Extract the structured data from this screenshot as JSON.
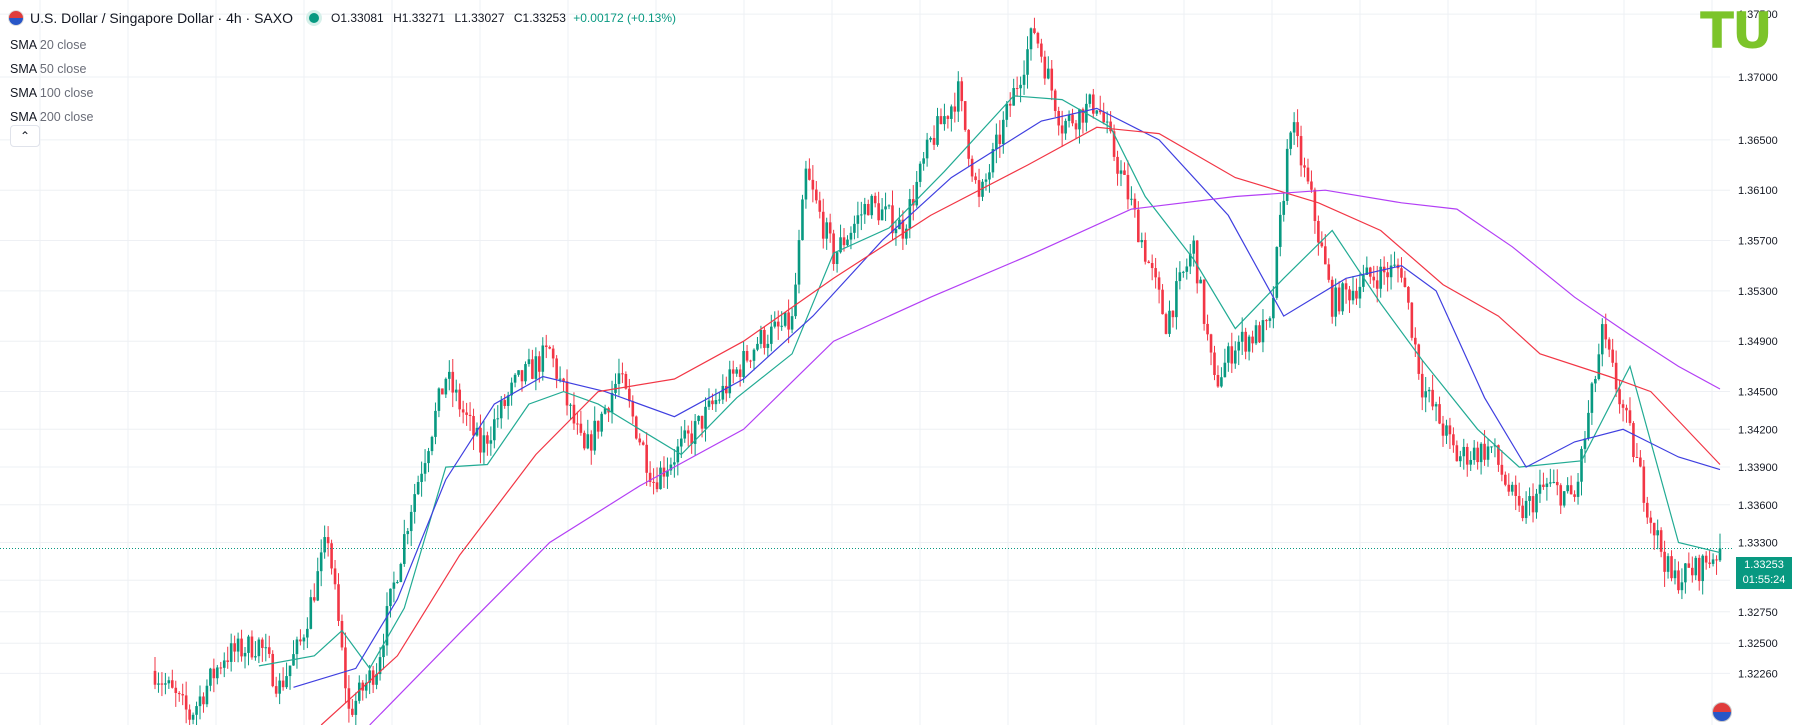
{
  "header": {
    "title": "U.S. Dollar / Singapore Dollar · 4h · SAXO",
    "open": "O1.33081",
    "high": "H1.33271",
    "low": "L1.33027",
    "close": "C1.33253",
    "change": "+0.00172 (+0.13%)"
  },
  "indicators": [
    {
      "name": "SMA",
      "params": "20 close"
    },
    {
      "name": "SMA",
      "params": "50 close"
    },
    {
      "name": "SMA",
      "params": "100 close"
    },
    {
      "name": "SMA",
      "params": "200 close"
    }
  ],
  "collapse_icon": "chevron-up-icon",
  "logo_text": "TU",
  "price_label": {
    "price": "1.33253",
    "timer": "01:55:24"
  },
  "colors": {
    "up": "#089981",
    "down": "#f23645",
    "sma20": "#22ab94",
    "sma50": "#3f3fe0",
    "sma100": "#f23645",
    "sma200": "#b33ff5",
    "grid": "#eef0f4",
    "axis_text": "#131722",
    "logo": "#7cc42a"
  },
  "chart_data": {
    "type": "candlestick",
    "title": "U.S. Dollar / Singapore Dollar · 4h · SAXO",
    "ylim": [
      1.3185,
      1.3758
    ],
    "y_ticks": [
      1.375,
      1.37,
      1.365,
      1.361,
      1.357,
      1.353,
      1.349,
      1.345,
      1.342,
      1.339,
      1.336,
      1.333,
      1.33,
      1.3275,
      1.325,
      1.3226
    ],
    "y_tick_labels": [
      "1.37500",
      "1.37000",
      "1.36500",
      "1.36100",
      "1.35700",
      "1.35300",
      "1.34900",
      "1.34500",
      "1.34200",
      "1.33900",
      "1.33600",
      "1.33300",
      "1.33000",
      "1.32750",
      "1.32500",
      "1.32260"
    ],
    "grid": true,
    "last_price": 1.33253,
    "series_close_path": [
      {
        "x": 0,
        "close": 1.3228
      },
      {
        "x": 10,
        "close": 1.3192
      },
      {
        "x": 20,
        "close": 1.324
      },
      {
        "x": 30,
        "close": 1.325
      },
      {
        "x": 36,
        "close": 1.3215
      },
      {
        "x": 42,
        "close": 1.325
      },
      {
        "x": 50,
        "close": 1.3335
      },
      {
        "x": 56,
        "close": 1.3195
      },
      {
        "x": 64,
        "close": 1.3232
      },
      {
        "x": 74,
        "close": 1.336
      },
      {
        "x": 84,
        "close": 1.3462
      },
      {
        "x": 94,
        "close": 1.3405
      },
      {
        "x": 104,
        "close": 1.3455
      },
      {
        "x": 114,
        "close": 1.3482
      },
      {
        "x": 124,
        "close": 1.34
      },
      {
        "x": 134,
        "close": 1.3462
      },
      {
        "x": 144,
        "close": 1.338
      },
      {
        "x": 154,
        "close": 1.3412
      },
      {
        "x": 164,
        "close": 1.345
      },
      {
        "x": 174,
        "close": 1.349
      },
      {
        "x": 184,
        "close": 1.3505
      },
      {
        "x": 188,
        "close": 1.3622
      },
      {
        "x": 196,
        "close": 1.3558
      },
      {
        "x": 206,
        "close": 1.36
      },
      {
        "x": 216,
        "close": 1.358
      },
      {
        "x": 224,
        "close": 1.3648
      },
      {
        "x": 232,
        "close": 1.3688
      },
      {
        "x": 238,
        "close": 1.36
      },
      {
        "x": 246,
        "close": 1.367
      },
      {
        "x": 254,
        "close": 1.3738
      },
      {
        "x": 262,
        "close": 1.3662
      },
      {
        "x": 272,
        "close": 1.368
      },
      {
        "x": 282,
        "close": 1.3598
      },
      {
        "x": 292,
        "close": 1.3505
      },
      {
        "x": 300,
        "close": 1.3565
      },
      {
        "x": 306,
        "close": 1.3455
      },
      {
        "x": 312,
        "close": 1.3488
      },
      {
        "x": 322,
        "close": 1.35
      },
      {
        "x": 328,
        "close": 1.3665
      },
      {
        "x": 334,
        "close": 1.3602
      },
      {
        "x": 340,
        "close": 1.352
      },
      {
        "x": 350,
        "close": 1.354
      },
      {
        "x": 360,
        "close": 1.3548
      },
      {
        "x": 366,
        "close": 1.3455
      },
      {
        "x": 376,
        "close": 1.3398
      },
      {
        "x": 386,
        "close": 1.3405
      },
      {
        "x": 394,
        "close": 1.3352
      },
      {
        "x": 402,
        "close": 1.3375
      },
      {
        "x": 410,
        "close": 1.3365
      },
      {
        "x": 418,
        "close": 1.3495
      },
      {
        "x": 426,
        "close": 1.3415
      },
      {
        "x": 432,
        "close": 1.335
      },
      {
        "x": 438,
        "close": 1.33
      },
      {
        "x": 446,
        "close": 1.331
      },
      {
        "x": 452,
        "close": 1.3325
      }
    ],
    "sma": [
      {
        "name": "SMA 20 close",
        "color": "#22ab94",
        "points": [
          [
            30,
            1.3232
          ],
          [
            46,
            1.324
          ],
          [
            54,
            1.326
          ],
          [
            62,
            1.323
          ],
          [
            72,
            1.3278
          ],
          [
            84,
            1.339
          ],
          [
            96,
            1.3392
          ],
          [
            108,
            1.344
          ],
          [
            118,
            1.345
          ],
          [
            128,
            1.344
          ],
          [
            140,
            1.342
          ],
          [
            152,
            1.34
          ],
          [
            168,
            1.3445
          ],
          [
            184,
            1.348
          ],
          [
            196,
            1.356
          ],
          [
            212,
            1.358
          ],
          [
            228,
            1.3625
          ],
          [
            248,
            1.3685
          ],
          [
            262,
            1.3682
          ],
          [
            276,
            1.366
          ],
          [
            286,
            1.3605
          ],
          [
            300,
            1.3555
          ],
          [
            312,
            1.35
          ],
          [
            326,
            1.354
          ],
          [
            340,
            1.3578
          ],
          [
            354,
            1.352
          ],
          [
            366,
            1.3475
          ],
          [
            382,
            1.342
          ],
          [
            394,
            1.339
          ],
          [
            412,
            1.3395
          ],
          [
            426,
            1.347
          ],
          [
            440,
            1.333
          ],
          [
            452,
            1.3322
          ]
        ]
      },
      {
        "name": "SMA 50 close",
        "color": "#3f3fe0",
        "points": [
          [
            40,
            1.3215
          ],
          [
            58,
            1.323
          ],
          [
            70,
            1.3285
          ],
          [
            84,
            1.338
          ],
          [
            98,
            1.344
          ],
          [
            112,
            1.3462
          ],
          [
            130,
            1.345
          ],
          [
            150,
            1.343
          ],
          [
            170,
            1.346
          ],
          [
            190,
            1.351
          ],
          [
            210,
            1.357
          ],
          [
            230,
            1.362
          ],
          [
            256,
            1.3665
          ],
          [
            272,
            1.3675
          ],
          [
            290,
            1.365
          ],
          [
            310,
            1.359
          ],
          [
            326,
            1.351
          ],
          [
            344,
            1.354
          ],
          [
            360,
            1.355
          ],
          [
            370,
            1.353
          ],
          [
            384,
            1.3445
          ],
          [
            396,
            1.339
          ],
          [
            410,
            1.341
          ],
          [
            424,
            1.342
          ],
          [
            440,
            1.3398
          ],
          [
            452,
            1.3388
          ]
        ]
      },
      {
        "name": "SMA 100 close",
        "color": "#f23645",
        "points": [
          [
            48,
            1.3185
          ],
          [
            70,
            1.324
          ],
          [
            88,
            1.332
          ],
          [
            110,
            1.34
          ],
          [
            128,
            1.345
          ],
          [
            150,
            1.346
          ],
          [
            170,
            1.349
          ],
          [
            196,
            1.354
          ],
          [
            224,
            1.359
          ],
          [
            252,
            1.363
          ],
          [
            272,
            1.366
          ],
          [
            290,
            1.3655
          ],
          [
            312,
            1.362
          ],
          [
            336,
            1.36
          ],
          [
            354,
            1.3578
          ],
          [
            372,
            1.3535
          ],
          [
            388,
            1.351
          ],
          [
            400,
            1.348
          ],
          [
            420,
            1.3462
          ],
          [
            432,
            1.345
          ],
          [
            452,
            1.3392
          ]
        ]
      },
      {
        "name": "SMA 200 close",
        "color": "#b33ff5",
        "points": [
          [
            62,
            1.3185
          ],
          [
            88,
            1.3258
          ],
          [
            114,
            1.333
          ],
          [
            140,
            1.3375
          ],
          [
            170,
            1.342
          ],
          [
            196,
            1.349
          ],
          [
            224,
            1.3525
          ],
          [
            254,
            1.356
          ],
          [
            282,
            1.3595
          ],
          [
            312,
            1.3605
          ],
          [
            338,
            1.361
          ],
          [
            360,
            1.36
          ],
          [
            376,
            1.3595
          ],
          [
            392,
            1.3565
          ],
          [
            410,
            1.3525
          ],
          [
            426,
            1.3495
          ],
          [
            440,
            1.347
          ],
          [
            452,
            1.3452
          ]
        ]
      }
    ],
    "candles": {
      "count": 453,
      "plot_right_index": 452
    }
  }
}
